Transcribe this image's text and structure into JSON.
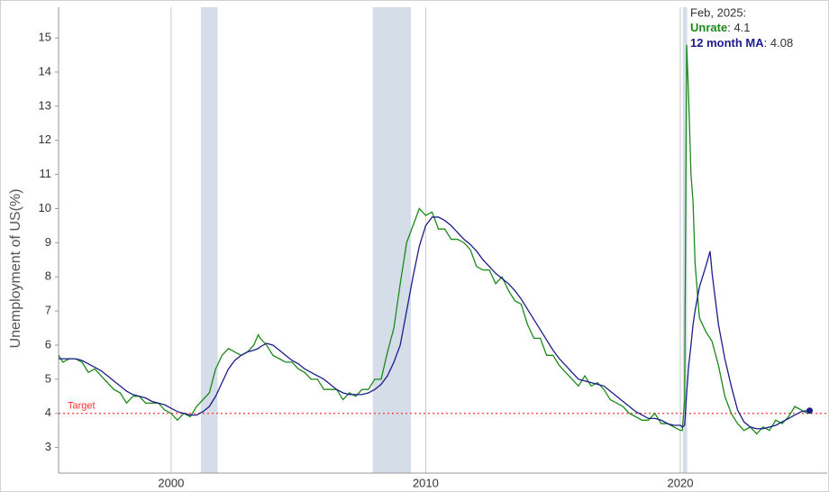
{
  "chart_data": {
    "type": "line",
    "y_label": "Unemployment of US(%)",
    "xlim": [
      1995.58,
      2025.77
    ],
    "ylim": [
      2.25,
      15.9
    ],
    "xticks": [
      2000,
      2010,
      2020
    ],
    "yticks": [
      3,
      4,
      5,
      6,
      7,
      8,
      9,
      10,
      11,
      12,
      13,
      14,
      15
    ],
    "target": {
      "value": 4,
      "label": "Target",
      "color": "#ff3333"
    },
    "recessions": [
      [
        2001.17,
        2001.83
      ],
      [
        2007.92,
        2009.42
      ],
      [
        2020.1,
        2020.27
      ]
    ],
    "recession_color": "#d5dde9",
    "tooltip": {
      "title": "Feb, 2025:",
      "separator": ":"
    },
    "x": [
      1995.58,
      1995.75,
      1996.0,
      1996.25,
      1996.5,
      1996.75,
      1997.0,
      1997.25,
      1997.5,
      1997.75,
      1998.0,
      1998.25,
      1998.5,
      1998.75,
      1999.0,
      1999.25,
      1999.5,
      1999.75,
      2000.0,
      2000.25,
      2000.5,
      2000.75,
      2001.0,
      2001.25,
      2001.5,
      2001.75,
      2002.0,
      2002.25,
      2002.5,
      2002.75,
      2003.0,
      2003.25,
      2003.42,
      2003.5,
      2003.75,
      2004.0,
      2004.25,
      2004.5,
      2004.75,
      2005.0,
      2005.25,
      2005.5,
      2005.75,
      2006.0,
      2006.25,
      2006.5,
      2006.75,
      2007.0,
      2007.25,
      2007.5,
      2007.75,
      2008.0,
      2008.25,
      2008.5,
      2008.75,
      2009.0,
      2009.25,
      2009.5,
      2009.75,
      2010.0,
      2010.25,
      2010.5,
      2010.75,
      2011.0,
      2011.25,
      2011.5,
      2011.75,
      2012.0,
      2012.25,
      2012.5,
      2012.75,
      2013.0,
      2013.25,
      2013.5,
      2013.75,
      2014.0,
      2014.25,
      2014.5,
      2014.75,
      2015.0,
      2015.25,
      2015.5,
      2015.75,
      2016.0,
      2016.25,
      2016.5,
      2016.75,
      2017.0,
      2017.25,
      2017.5,
      2017.75,
      2018.0,
      2018.25,
      2018.5,
      2018.75,
      2019.0,
      2019.25,
      2019.5,
      2019.75,
      2020.0,
      2020.08,
      2020.17,
      2020.25,
      2020.33,
      2020.42,
      2020.5,
      2020.58,
      2020.75,
      2021.0,
      2021.17,
      2021.25,
      2021.5,
      2021.75,
      2022.0,
      2022.25,
      2022.5,
      2022.75,
      2023.0,
      2023.25,
      2023.5,
      2023.75,
      2024.0,
      2024.25,
      2024.5,
      2024.75,
      2025.0,
      2025.08
    ],
    "series": [
      {
        "name": "Unrate",
        "color": "#1a8a1a",
        "values": [
          5.7,
          5.5,
          5.6,
          5.6,
          5.5,
          5.2,
          5.3,
          5.1,
          4.9,
          4.7,
          4.6,
          4.3,
          4.5,
          4.5,
          4.3,
          4.3,
          4.3,
          4.1,
          4.0,
          3.8,
          4.0,
          3.9,
          4.2,
          4.4,
          4.6,
          5.3,
          5.7,
          5.9,
          5.8,
          5.7,
          5.8,
          6.0,
          6.3,
          6.2,
          6.0,
          5.7,
          5.6,
          5.5,
          5.5,
          5.3,
          5.2,
          5.0,
          5.0,
          4.7,
          4.7,
          4.7,
          4.4,
          4.6,
          4.5,
          4.7,
          4.7,
          5.0,
          5.0,
          5.8,
          6.5,
          7.8,
          9.0,
          9.5,
          10.0,
          9.8,
          9.9,
          9.4,
          9.4,
          9.1,
          9.1,
          9.0,
          8.8,
          8.3,
          8.2,
          8.2,
          7.8,
          8.0,
          7.6,
          7.3,
          7.2,
          6.6,
          6.2,
          6.2,
          5.7,
          5.7,
          5.4,
          5.2,
          5.0,
          4.8,
          5.1,
          4.8,
          4.9,
          4.7,
          4.4,
          4.3,
          4.2,
          4.0,
          3.9,
          3.8,
          3.8,
          4.0,
          3.7,
          3.7,
          3.6,
          3.5,
          3.5,
          4.4,
          14.8,
          13.2,
          11.0,
          10.2,
          8.4,
          6.8,
          6.4,
          6.2,
          6.1,
          5.4,
          4.5,
          4.0,
          3.7,
          3.5,
          3.6,
          3.4,
          3.6,
          3.5,
          3.8,
          3.7,
          3.9,
          4.2,
          4.1,
          4.0,
          4.1
        ]
      },
      {
        "name": "12 month MA",
        "color": "#1c1c8c",
        "values": [
          5.6,
          5.6,
          5.6,
          5.6,
          5.55,
          5.45,
          5.35,
          5.25,
          5.1,
          4.95,
          4.8,
          4.65,
          4.55,
          4.5,
          4.45,
          4.35,
          4.3,
          4.25,
          4.15,
          4.05,
          4.0,
          3.95,
          3.95,
          4.05,
          4.2,
          4.5,
          4.9,
          5.3,
          5.55,
          5.7,
          5.8,
          5.85,
          5.9,
          5.95,
          6.05,
          6.0,
          5.85,
          5.7,
          5.55,
          5.45,
          5.3,
          5.2,
          5.1,
          5.0,
          4.85,
          4.7,
          4.6,
          4.55,
          4.55,
          4.55,
          4.6,
          4.7,
          4.85,
          5.1,
          5.5,
          6.0,
          7.0,
          8.0,
          8.9,
          9.5,
          9.75,
          9.75,
          9.65,
          9.5,
          9.3,
          9.1,
          8.95,
          8.75,
          8.5,
          8.3,
          8.1,
          7.95,
          7.8,
          7.6,
          7.35,
          7.05,
          6.75,
          6.45,
          6.15,
          5.85,
          5.6,
          5.4,
          5.2,
          5.0,
          4.95,
          4.9,
          4.85,
          4.8,
          4.65,
          4.5,
          4.35,
          4.2,
          4.05,
          3.95,
          3.85,
          3.85,
          3.8,
          3.7,
          3.65,
          3.65,
          3.6,
          3.65,
          4.6,
          5.4,
          6.0,
          6.6,
          7.0,
          7.7,
          8.3,
          8.75,
          8.1,
          6.6,
          5.6,
          4.8,
          4.1,
          3.75,
          3.6,
          3.55,
          3.55,
          3.6,
          3.65,
          3.75,
          3.85,
          3.95,
          4.05,
          4.08,
          4.08
        ]
      }
    ]
  }
}
